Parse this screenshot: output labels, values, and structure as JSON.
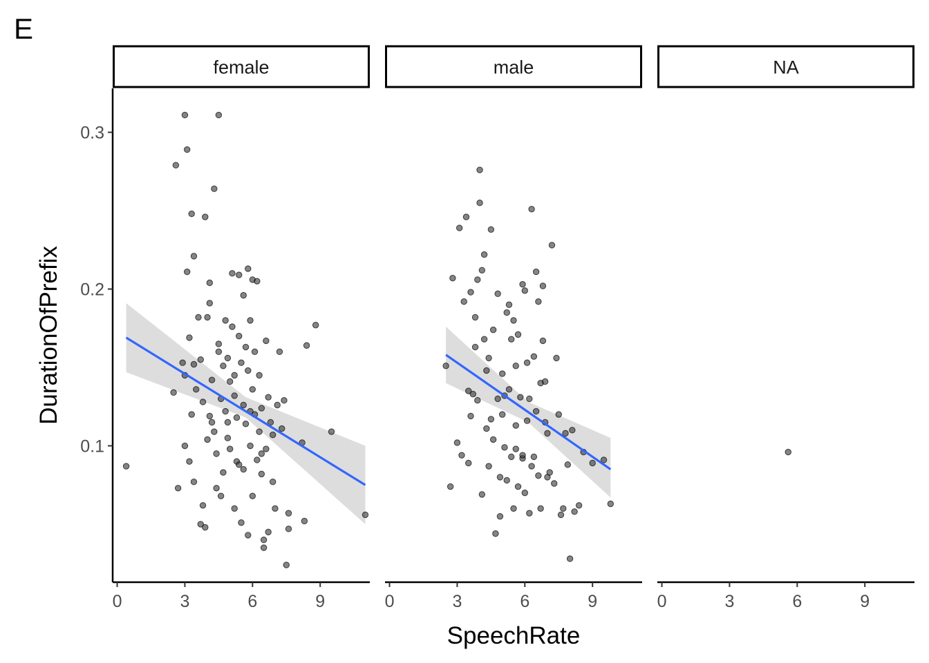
{
  "panel_tag": "E",
  "chart_data": {
    "type": "scatter",
    "xlabel": "SpeechRate",
    "ylabel": "DurationOfPrefix",
    "xlim": [
      -0.2,
      11.2
    ],
    "ylim": [
      0.013,
      0.328
    ],
    "x_ticks": [
      0,
      3,
      6,
      9
    ],
    "y_ticks": [
      0.1,
      0.2,
      0.3
    ],
    "y_tick_labels": [
      "0.1",
      "0.2",
      "0.3"
    ],
    "grid": false,
    "colors": {
      "points": "#333333",
      "fit_line": "#3366ff",
      "ribbon": "#d9d9d9"
    },
    "facets": [
      {
        "label": "female",
        "fit": {
          "x": [
            0.4,
            11.0
          ],
          "y": [
            0.169,
            0.075
          ]
        },
        "ribbon": {
          "x": [
            0.4,
            5.7,
            11.0
          ],
          "lower": [
            0.147,
            0.118,
            0.05
          ],
          "upper": [
            0.191,
            0.131,
            0.1
          ]
        },
        "points": [
          [
            0.4,
            0.087
          ],
          [
            2.5,
            0.134
          ],
          [
            2.6,
            0.279
          ],
          [
            2.7,
            0.073
          ],
          [
            2.9,
            0.153
          ],
          [
            3.0,
            0.311
          ],
          [
            3.0,
            0.1
          ],
          [
            3.1,
            0.211
          ],
          [
            3.1,
            0.289
          ],
          [
            3.2,
            0.169
          ],
          [
            3.3,
            0.248
          ],
          [
            3.4,
            0.221
          ],
          [
            3.4,
            0.077
          ],
          [
            3.3,
            0.12
          ],
          [
            3.2,
            0.09
          ],
          [
            3.5,
            0.136
          ],
          [
            3.6,
            0.182
          ],
          [
            3.7,
            0.155
          ],
          [
            3.7,
            0.05
          ],
          [
            3.8,
            0.062
          ],
          [
            3.8,
            0.128
          ],
          [
            3.9,
            0.246
          ],
          [
            3.9,
            0.048
          ],
          [
            4.0,
            0.104
          ],
          [
            4.0,
            0.182
          ],
          [
            4.1,
            0.191
          ],
          [
            4.1,
            0.204
          ],
          [
            4.2,
            0.142
          ],
          [
            4.2,
            0.115
          ],
          [
            4.3,
            0.264
          ],
          [
            4.3,
            0.109
          ],
          [
            4.4,
            0.095
          ],
          [
            4.4,
            0.073
          ],
          [
            4.5,
            0.311
          ],
          [
            4.5,
            0.165
          ],
          [
            4.6,
            0.13
          ],
          [
            4.6,
            0.068
          ],
          [
            4.7,
            0.151
          ],
          [
            4.7,
            0.083
          ],
          [
            4.8,
            0.18
          ],
          [
            4.8,
            0.122
          ],
          [
            4.9,
            0.156
          ],
          [
            4.9,
            0.105
          ],
          [
            5.0,
            0.098
          ],
          [
            5.0,
            0.141
          ],
          [
            5.1,
            0.21
          ],
          [
            5.1,
            0.176
          ],
          [
            5.2,
            0.06
          ],
          [
            5.2,
            0.132
          ],
          [
            5.3,
            0.118
          ],
          [
            5.3,
            0.09
          ],
          [
            5.4,
            0.209
          ],
          [
            5.4,
            0.17
          ],
          [
            5.5,
            0.153
          ],
          [
            5.5,
            0.051
          ],
          [
            5.6,
            0.196
          ],
          [
            5.6,
            0.126
          ],
          [
            5.6,
            0.085
          ],
          [
            5.7,
            0.114
          ],
          [
            5.7,
            0.163
          ],
          [
            5.8,
            0.213
          ],
          [
            5.8,
            0.148
          ],
          [
            5.8,
            0.043
          ],
          [
            5.9,
            0.18
          ],
          [
            5.9,
            0.1
          ],
          [
            6.0,
            0.206
          ],
          [
            6.0,
            0.136
          ],
          [
            6.0,
            0.068
          ],
          [
            6.1,
            0.16
          ],
          [
            6.1,
            0.12
          ],
          [
            6.2,
            0.205
          ],
          [
            6.2,
            0.091
          ],
          [
            6.3,
            0.145
          ],
          [
            6.3,
            0.109
          ],
          [
            6.4,
            0.124
          ],
          [
            6.4,
            0.082
          ],
          [
            6.5,
            0.04
          ],
          [
            6.5,
            0.035
          ],
          [
            6.6,
            0.167
          ],
          [
            6.6,
            0.098
          ],
          [
            6.7,
            0.045
          ],
          [
            6.7,
            0.131
          ],
          [
            6.8,
            0.115
          ],
          [
            6.9,
            0.077
          ],
          [
            7.0,
            0.06
          ],
          [
            7.1,
            0.126
          ],
          [
            7.2,
            0.16
          ],
          [
            7.3,
            0.111
          ],
          [
            7.4,
            0.129
          ],
          [
            7.5,
            0.024
          ],
          [
            7.6,
            0.057
          ],
          [
            7.6,
            0.047
          ],
          [
            8.2,
            0.102
          ],
          [
            8.3,
            0.052
          ],
          [
            8.4,
            0.164
          ],
          [
            8.8,
            0.177
          ],
          [
            9.5,
            0.109
          ],
          [
            11.0,
            0.056
          ],
          [
            3.0,
            0.145
          ],
          [
            3.4,
            0.152
          ],
          [
            4.5,
            0.16
          ],
          [
            5.2,
            0.145
          ],
          [
            5.9,
            0.122
          ],
          [
            6.4,
            0.095
          ],
          [
            4.9,
            0.115
          ],
          [
            4.1,
            0.119
          ],
          [
            5.4,
            0.088
          ],
          [
            6.9,
            0.107
          ]
        ]
      },
      {
        "label": "male",
        "fit": {
          "x": [
            2.5,
            9.8
          ],
          "y": [
            0.158,
            0.085
          ]
        },
        "ribbon": {
          "x": [
            2.5,
            6.15,
            9.8
          ],
          "lower": [
            0.14,
            0.115,
            0.067
          ],
          "upper": [
            0.176,
            0.128,
            0.105
          ]
        },
        "points": [
          [
            2.5,
            0.151
          ],
          [
            2.7,
            0.074
          ],
          [
            2.8,
            0.207
          ],
          [
            3.0,
            0.102
          ],
          [
            3.1,
            0.239
          ],
          [
            3.3,
            0.192
          ],
          [
            3.4,
            0.246
          ],
          [
            3.5,
            0.089
          ],
          [
            3.6,
            0.198
          ],
          [
            3.6,
            0.119
          ],
          [
            3.7,
            0.133
          ],
          [
            3.8,
            0.163
          ],
          [
            3.8,
            0.182
          ],
          [
            3.9,
            0.206
          ],
          [
            4.0,
            0.255
          ],
          [
            4.0,
            0.276
          ],
          [
            4.1,
            0.212
          ],
          [
            4.1,
            0.069
          ],
          [
            4.2,
            0.222
          ],
          [
            4.2,
            0.168
          ],
          [
            4.3,
            0.148
          ],
          [
            4.3,
            0.111
          ],
          [
            4.4,
            0.156
          ],
          [
            4.4,
            0.087
          ],
          [
            4.5,
            0.238
          ],
          [
            4.6,
            0.174
          ],
          [
            4.6,
            0.104
          ],
          [
            4.7,
            0.044
          ],
          [
            4.8,
            0.13
          ],
          [
            4.8,
            0.197
          ],
          [
            4.9,
            0.055
          ],
          [
            5.0,
            0.146
          ],
          [
            5.0,
            0.12
          ],
          [
            5.1,
            0.099
          ],
          [
            5.2,
            0.185
          ],
          [
            5.2,
            0.078
          ],
          [
            5.3,
            0.19
          ],
          [
            5.3,
            0.136
          ],
          [
            5.4,
            0.168
          ],
          [
            5.4,
            0.093
          ],
          [
            5.5,
            0.18
          ],
          [
            5.5,
            0.06
          ],
          [
            5.6,
            0.151
          ],
          [
            5.6,
            0.113
          ],
          [
            5.7,
            0.171
          ],
          [
            5.7,
            0.074
          ],
          [
            5.8,
            0.131
          ],
          [
            5.9,
            0.203
          ],
          [
            5.9,
            0.092
          ],
          [
            6.0,
            0.199
          ],
          [
            6.0,
            0.07
          ],
          [
            6.1,
            0.153
          ],
          [
            6.1,
            0.116
          ],
          [
            6.2,
            0.13
          ],
          [
            6.2,
            0.057
          ],
          [
            6.3,
            0.251
          ],
          [
            6.3,
            0.087
          ],
          [
            6.4,
            0.157
          ],
          [
            6.5,
            0.211
          ],
          [
            6.5,
            0.122
          ],
          [
            6.6,
            0.192
          ],
          [
            6.6,
            0.081
          ],
          [
            6.7,
            0.14
          ],
          [
            6.7,
            0.06
          ],
          [
            6.8,
            0.202
          ],
          [
            6.8,
            0.167
          ],
          [
            6.9,
            0.141
          ],
          [
            7.0,
            0.108
          ],
          [
            7.0,
            0.08
          ],
          [
            7.1,
            0.083
          ],
          [
            7.2,
            0.228
          ],
          [
            7.3,
            0.076
          ],
          [
            7.4,
            0.156
          ],
          [
            7.5,
            0.12
          ],
          [
            7.6,
            0.056
          ],
          [
            7.7,
            0.06
          ],
          [
            7.8,
            0.108
          ],
          [
            8.0,
            0.028
          ],
          [
            8.1,
            0.11
          ],
          [
            8.2,
            0.058
          ],
          [
            8.4,
            0.062
          ],
          [
            8.6,
            0.096
          ],
          [
            9.0,
            0.089
          ],
          [
            9.5,
            0.091
          ],
          [
            9.8,
            0.063
          ],
          [
            3.2,
            0.094
          ],
          [
            3.9,
            0.129
          ],
          [
            4.5,
            0.117
          ],
          [
            5.1,
            0.132
          ],
          [
            5.9,
            0.094
          ],
          [
            6.4,
            0.093
          ],
          [
            5.6,
            0.098
          ],
          [
            4.9,
            0.08
          ],
          [
            3.5,
            0.135
          ],
          [
            6.9,
            0.115
          ],
          [
            7.9,
            0.088
          ]
        ]
      },
      {
        "label": "NA",
        "points": [
          [
            5.6,
            0.096
          ]
        ]
      }
    ]
  }
}
